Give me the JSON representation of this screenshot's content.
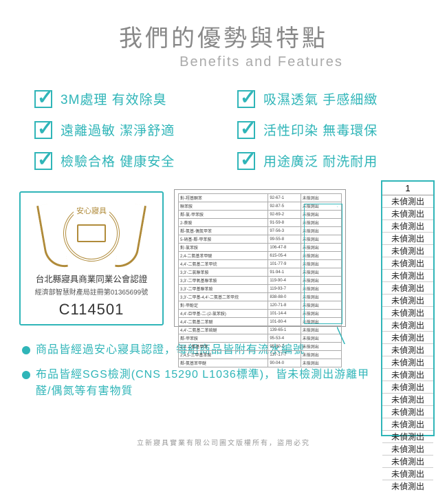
{
  "header": {
    "title_zh": "我們的優勢與特點",
    "title_en": "Benefits and Features"
  },
  "benefits": [
    "3M處理 有效除臭",
    "吸濕透氣 手感細緻",
    "遠離過敏 潔淨舒適",
    "活性印染 無毒環保",
    "檢驗合格 健康安全",
    "用途廣泛 耐洗耐用"
  ],
  "cert": {
    "top_text": "安心寢具",
    "line1": "台北縣寢具商業同業公會認證",
    "line2": "經濟部智慧財產局註冊第01365699號",
    "code": "C114501"
  },
  "report_rows": [
    [
      "對-羥基酮苯",
      "92-67-1",
      "未檢測出"
    ],
    [
      "聯苯胺",
      "92-87-5",
      "未檢測出"
    ],
    [
      "鄰-氯-甲苯胺",
      "92-69-2",
      "未檢測出"
    ],
    [
      "2-萘胺",
      "91-59-8",
      "未檢測出"
    ],
    [
      "鄰-氨基-偶氮甲苯",
      "97-56-3",
      "未檢測出"
    ],
    [
      "5-硝基-鄰-甲苯胺",
      "99-55-8",
      "未檢測出"
    ],
    [
      "對-氯苯胺",
      "106-47-8",
      "未檢測出"
    ],
    [
      "2,4-二氨基苯甲醚",
      "615-05-4",
      "未檢測出"
    ],
    [
      "4,4'-二氨基二苯甲烷",
      "101-77-9",
      "未檢測出"
    ],
    [
      "3,3'-二氯聯苯胺",
      "91-94-1",
      "未檢測出"
    ],
    [
      "3,3'-二甲氧基聯苯胺",
      "119-90-4",
      "未檢測出"
    ],
    [
      "3,3'-二甲基聯苯胺",
      "119-93-7",
      "未檢測出"
    ],
    [
      "3,3'-二甲基-4,4'-二氨基二苯甲烷",
      "838-88-0",
      "未檢測出"
    ],
    [
      "對-甲酚定",
      "120-71-8",
      "未檢測出"
    ],
    [
      "4,4'-亞甲基-二-(2-氯苯胺)",
      "101-14-4",
      "未檢測出"
    ],
    [
      "4,4'-二氨基二苯醚",
      "101-80-4",
      "未檢測出"
    ],
    [
      "4,4'-二氨基二苯硫醚",
      "139-65-1",
      "未檢測出"
    ],
    [
      "鄰-甲苯胺",
      "95-53-4",
      "未檢測出"
    ],
    [
      "2,4-二氨基甲苯",
      "95-80-7",
      "未檢測出"
    ],
    [
      "2,4,5-三甲基苯胺",
      "137-17-7",
      "未檢測出"
    ],
    [
      "鄰-氨基苯甲醚",
      "90-04-0",
      "未檢測出"
    ]
  ],
  "zoom": {
    "head": "1",
    "cells": [
      "未偵測出",
      "未偵測出",
      "未偵測出",
      "未偵測出",
      "未偵測出",
      "未偵測出",
      "未偵測出",
      "未偵測出",
      "未偵測出",
      "未偵測出",
      "未偵測出",
      "未偵測出",
      "未偵測出",
      "未偵測出",
      "未偵測出",
      "未偵測出",
      "未偵測出",
      "未偵測出",
      "未偵測出",
      "未偵測出",
      "未偵測出",
      "未偵測出",
      "未偵測出",
      "未偵測出"
    ]
  },
  "bullets": [
    "商品皆經過安心寢具認證，每組商品皆附有流水編號",
    "布品皆經SGS檢測(CNS 15290 L1036標準)，皆未檢測出游離甲醛/偶氮等有害物質"
  ],
  "footer": "立新寢具實業有限公司圖文版權所有，盜用必究"
}
